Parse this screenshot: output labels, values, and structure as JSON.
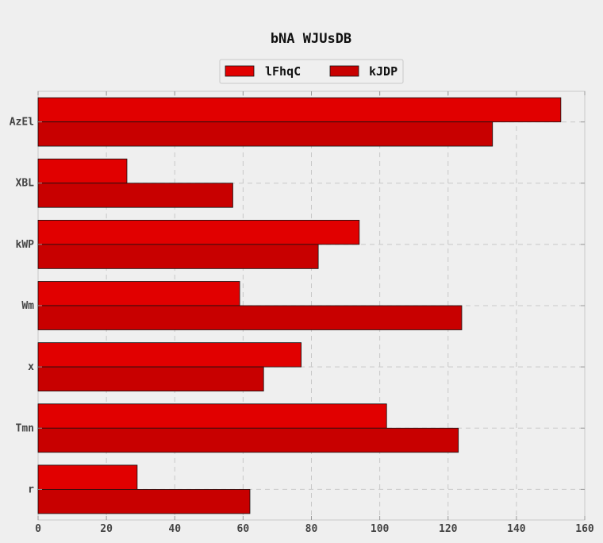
{
  "chart_data": {
    "type": "bar",
    "orientation": "horizontal",
    "title": "bNA WJUsDB",
    "xlabel": "",
    "ylabel": "",
    "categories": [
      "AzEl",
      "XBL",
      "kWP",
      "Wm",
      "x",
      "Tmn",
      "r"
    ],
    "series": [
      {
        "name": "lFhqC",
        "values": [
          153,
          26,
          94,
          59,
          77,
          102,
          29
        ],
        "color": "#e10000"
      },
      {
        "name": "kJDP",
        "values": [
          133,
          57,
          82,
          124,
          66,
          123,
          62
        ],
        "color": "#c80000"
      }
    ],
    "xlim": [
      0,
      160
    ],
    "xticks": [
      "0",
      "20",
      "40",
      "60",
      "80",
      "100",
      "120",
      "140",
      "160"
    ],
    "grid": true,
    "legend_position": "top-center"
  }
}
